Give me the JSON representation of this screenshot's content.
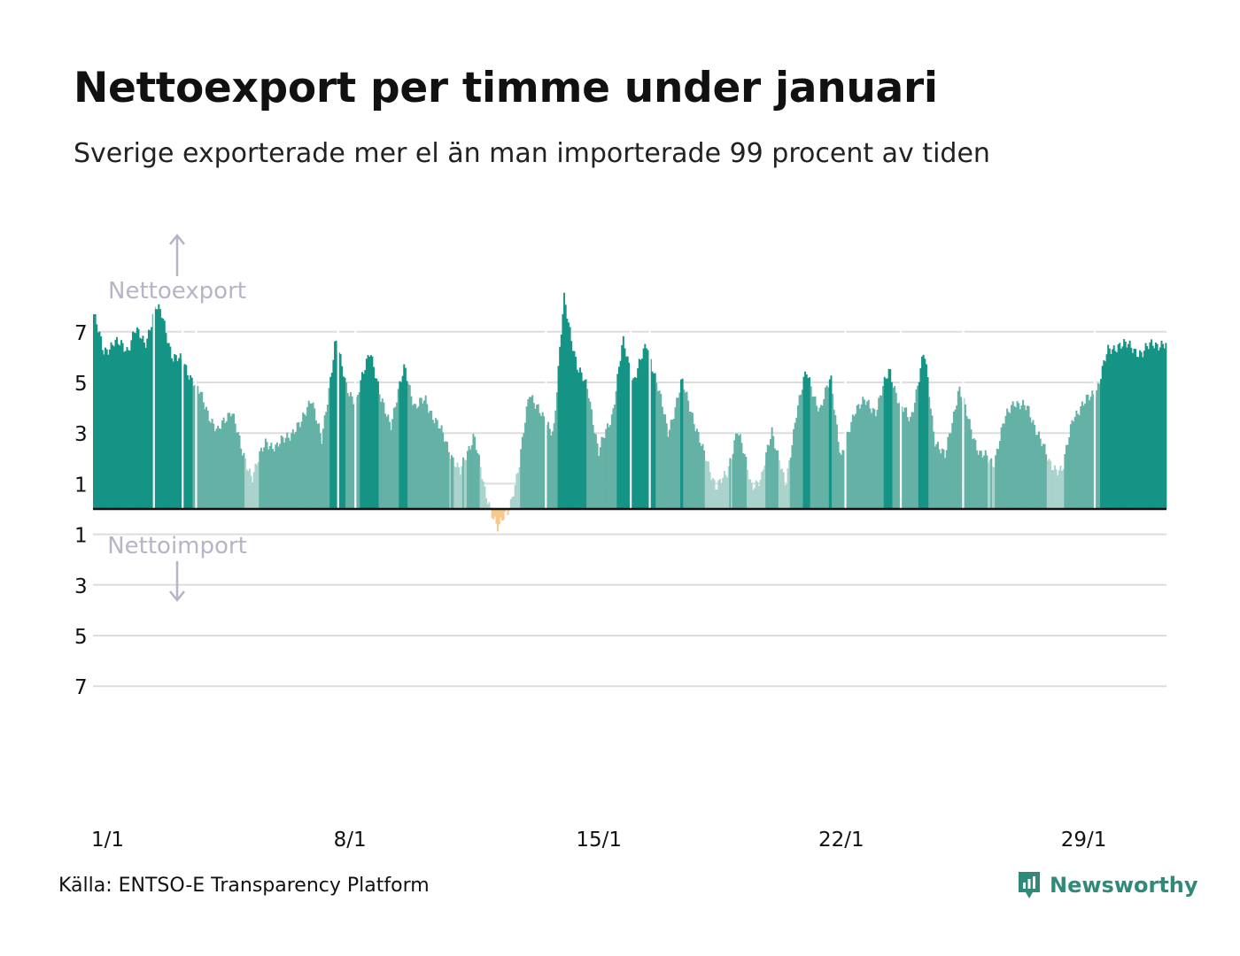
{
  "title": "Nettoexport per timme under januari",
  "subtitle": "Sverige exporterade mer el än man importerade 99 procent av tiden",
  "source": "Källa: ENTSO-E Transparency Platform",
  "brand": {
    "name": "Newsworthy",
    "icon": "newsworthy-logo-icon",
    "color": "#2f8a79"
  },
  "chart_data": {
    "type": "area",
    "ylim": [
      -7,
      7
    ],
    "annotations": {
      "export_label": "Nettoexport",
      "import_label": "Nettoimport"
    },
    "y_ticks": [
      {
        "value": 7,
        "label": "7"
      },
      {
        "value": 5,
        "label": "5"
      },
      {
        "value": 3,
        "label": "3"
      },
      {
        "value": 1,
        "label": "1"
      },
      {
        "value": -1,
        "label": "1"
      },
      {
        "value": -3,
        "label": "3"
      },
      {
        "value": -5,
        "label": "5"
      },
      {
        "value": -7,
        "label": "7"
      }
    ],
    "x_ticks": [
      {
        "day": 1,
        "label": "1/1"
      },
      {
        "day": 8,
        "label": "8/1"
      },
      {
        "day": 15,
        "label": "15/1"
      },
      {
        "day": 22,
        "label": "22/1"
      },
      {
        "day": 29,
        "label": "29/1"
      }
    ],
    "x_range_days": [
      1,
      32
    ],
    "colors": {
      "export_strong": "#159485",
      "export_mid": "#64b1a6",
      "export_light": "#a9d3cc",
      "import": "#f6c88a",
      "zero_line": "#111111",
      "grid": "#dddddd",
      "annotation": "#b7b4c5"
    },
    "series": [
      {
        "name": "Nettoexport",
        "x_days": [
          1.0,
          1.3,
          1.6,
          2.0,
          2.2,
          2.5,
          2.8,
          3.0,
          3.3,
          3.6,
          4.0,
          4.3,
          4.6,
          5.0,
          5.3,
          5.6,
          6.0,
          6.3,
          6.6,
          7.0,
          7.3,
          7.6,
          8.0,
          8.3,
          8.6,
          9.0,
          9.3,
          9.6,
          10.0,
          10.3,
          10.6,
          11.0,
          11.3,
          11.6,
          12.0,
          12.3,
          12.5,
          12.7,
          13.0,
          13.3,
          13.6,
          14.0,
          14.3,
          14.6,
          15.0,
          15.3,
          15.6,
          16.0,
          16.3,
          16.6,
          17.0,
          17.3,
          17.6,
          18.0,
          18.3,
          18.6,
          19.0,
          19.3,
          19.6,
          20.0,
          20.3,
          20.6,
          21.0,
          21.3,
          21.6,
          22.0,
          22.3,
          22.6,
          23.0,
          23.3,
          23.6,
          24.0,
          24.3,
          24.6,
          25.0,
          25.3,
          25.6,
          26.0,
          26.3,
          26.6,
          27.0,
          27.3,
          27.6,
          28.0,
          28.3,
          28.6,
          29.0,
          29.3,
          29.6,
          30.0,
          30.3,
          30.6,
          31.0,
          31.3,
          31.6,
          32.0
        ],
        "values": [
          7.8,
          6.2,
          6.6,
          6.3,
          7.1,
          6.5,
          8.0,
          7.6,
          6.0,
          5.8,
          4.8,
          3.9,
          3.0,
          4.0,
          2.2,
          1.3,
          2.7,
          2.4,
          2.9,
          3.3,
          4.5,
          2.6,
          6.7,
          4.9,
          4.2,
          6.4,
          4.3,
          3.4,
          5.6,
          4.0,
          4.3,
          3.2,
          2.3,
          1.4,
          3.0,
          0.7,
          0.0,
          -0.8,
          0.0,
          1.6,
          4.7,
          3.5,
          3.1,
          8.3,
          5.5,
          4.7,
          2.2,
          3.8,
          6.6,
          5.1,
          6.5,
          4.9,
          3.0,
          5.0,
          3.8,
          2.3,
          0.9,
          1.3,
          3.2,
          1.0,
          1.1,
          3.2,
          0.8,
          3.8,
          5.4,
          3.8,
          5.3,
          1.9,
          4.0,
          4.2,
          3.9,
          5.5,
          4.1,
          3.5,
          6.2,
          2.8,
          2.0,
          4.8,
          3.4,
          2.2,
          1.8,
          3.4,
          4.3,
          3.9,
          3.0,
          1.8,
          1.5,
          3.7,
          4.1,
          4.8,
          6.2,
          6.5,
          6.4,
          6.1,
          6.6,
          6.4
        ]
      }
    ]
  }
}
